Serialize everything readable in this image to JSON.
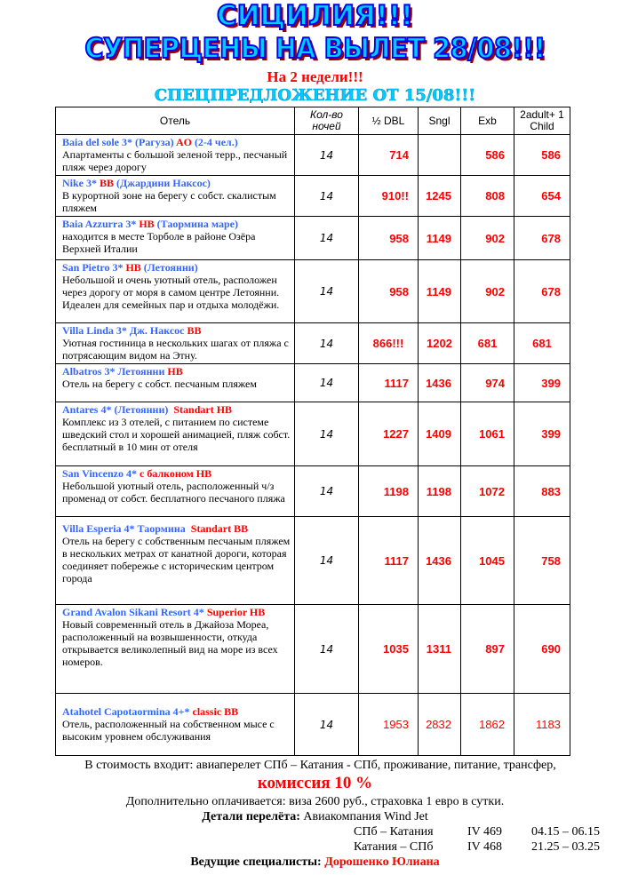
{
  "header": {
    "title_line1": "СИЦИЛИЯ!!!",
    "title_line2": "СУПЕРЦЕНЫ НА ВЫЛЕТ 28/08!!!",
    "subtitle": "На 2 недели!!!",
    "special_offer": "СПЕЦПРЕДЛОЖЕНИЕ ОТ 15/08!!!"
  },
  "table": {
    "columns": [
      "Отель",
      "Кол-во ночей",
      "½ DBL",
      "Sngl",
      "Exb",
      "2adult+ 1 Child"
    ],
    "rows": [
      {
        "name": [
          {
            "t": "Baia del sole 3* (Рагуза) ",
            "c": "blue"
          },
          {
            "t": "AO",
            "c": "red"
          },
          {
            "t": " (2-4 чел.)",
            "c": "blue"
          }
        ],
        "desc": "Апартаменты с большой зеленой терр., песчаный пляж через дорогу",
        "nights": "14",
        "dbl": "714",
        "sngl": "",
        "exb": "586",
        "child": "586"
      },
      {
        "name": [
          {
            "t": "Nike 3* ",
            "c": "blue"
          },
          {
            "t": "BB",
            "c": "red"
          },
          {
            "t": " (Джардини Наксос)",
            "c": "blue"
          }
        ],
        "desc": "В курортной зоне на берегу с собст. скалистым пляжем",
        "nights": "14",
        "dbl": "910!!",
        "sngl": "1245",
        "exb": "808",
        "child": "654"
      },
      {
        "name": [
          {
            "t": "Baia Azzurra 3* ",
            "c": "blue"
          },
          {
            "t": "HB",
            "c": "red"
          },
          {
            "t": " (Таормина маре)",
            "c": "blue"
          }
        ],
        "desc": "находится в месте Торболе в районе Озёра Верхней Италии",
        "nights": "14",
        "dbl": "958",
        "sngl": "1149",
        "exb": "902",
        "child": "678"
      },
      {
        "name": [
          {
            "t": "San Pietro 3* ",
            "c": "blue"
          },
          {
            "t": "HB",
            "c": "red"
          },
          {
            "t": " (Летоянни)",
            "c": "blue"
          }
        ],
        "desc": "Небольшой и очень уютный отель, расположен через дорогу от моря в самом центре Летоянни. Идеален для семейных пар и отдыха молодёжи.",
        "nights": "14",
        "dbl": "958",
        "sngl": "1149",
        "exb": "902",
        "child": "678"
      },
      {
        "name": [
          {
            "t": "Villa Linda 3* Дж. Наксос ",
            "c": "blue"
          },
          {
            "t": "BB",
            "c": "red"
          }
        ],
        "desc": "Уютная гостиница в нескольких шагах от пляжа с потрясающим видом на Этну.",
        "nights": "14",
        "dbl": "866!!!",
        "sngl": "1202",
        "exb": "681",
        "child": "681"
      },
      {
        "name": [
          {
            "t": "Albatros 3* Летоянни ",
            "c": "blue"
          },
          {
            "t": "HB",
            "c": "red"
          }
        ],
        "desc": "Отель на берегу с собст. песчаным пляжем",
        "nights": "14",
        "dbl": "1117",
        "sngl": "1436",
        "exb": "974",
        "child": "399"
      },
      {
        "name": [
          {
            "t": "Antares 4* (Летоянни)  ",
            "c": "blue"
          },
          {
            "t": "Standart HB",
            "c": "red"
          }
        ],
        "desc": "Комплекс из 3 отелей, с питанием по системе шведский стол и хорошей анимацией, пляж собст. бесплатный в 10 мин от отеля",
        "nights": "14",
        "dbl": "1227",
        "sngl": "1409",
        "exb": "1061",
        "child": "399"
      },
      {
        "name": [
          {
            "t": "San Vincenzo 4* ",
            "c": "blue"
          },
          {
            "t": "с балконом HB",
            "c": "red"
          }
        ],
        "desc": "Небольшой уютный отель, расположенный ч/з променад от собст. бесплатного песчаного пляжа",
        "nights": "14",
        "dbl": "1198",
        "sngl": "1198",
        "exb": "1072",
        "child": "883"
      },
      {
        "name": [
          {
            "t": "Villa Esperia 4* Таормина  ",
            "c": "blue"
          },
          {
            "t": "Standart BB",
            "c": "red"
          }
        ],
        "desc": "Отель на берегу с собственным песчаным пляжем в нескольких метрах от канатной дороги, которая соединяет побережье с историческим центром города",
        "nights": "14",
        "dbl": "1117",
        "sngl": "1436",
        "exb": "1045",
        "child": "758"
      },
      {
        "name": [
          {
            "t": "Grand Avalon Sikani Resort 4* ",
            "c": "blue"
          },
          {
            "t": "Superior HB",
            "c": "red"
          }
        ],
        "desc": "Новый современный отель в Джайоза Мореа, расположенный на возвышенности, откуда открывается великолепный вид на море из всех номеров.",
        "nights": "14",
        "dbl": "1035",
        "sngl": "1311",
        "exb": "897",
        "child": "690"
      },
      {
        "name": [
          {
            "t": "Atahotel Capotaormina 4+* ",
            "c": "blue"
          },
          {
            "t": "classic BB",
            "c": "red"
          }
        ],
        "desc": "Отель, расположенный на собственном мысе с высоким уровнем обслуживания",
        "nights": "14",
        "dbl": "1953",
        "sngl": "2832",
        "exb": "1862",
        "child": "1183"
      }
    ]
  },
  "footer": {
    "included": "В стоимость входит: авиаперелет СПб – Катания - СПб, проживание, питание, трансфер,",
    "commission": "комиссия 10 %",
    "extra": "Дополнительно оплачивается: виза 2600 руб., страховка 1 евро в сутки.",
    "flight_label": "Детали перелёта:",
    "flight_value": " Авиакомпания Wind Jet",
    "flights": [
      {
        "route": "СПб – Катания",
        "flight": "IV 469",
        "time": "04.15 – 06.15"
      },
      {
        "route": "Катания – СПб",
        "flight": "IV 468",
        "time": "21.25 – 03.25"
      }
    ],
    "specialists_label": "Ведущие специалисты:",
    "specialists_value": " Дорошенко Юлиана"
  },
  "colors": {
    "title": "#00ccff",
    "accent": "#ff0000",
    "hotel_name": "#3366ff"
  }
}
